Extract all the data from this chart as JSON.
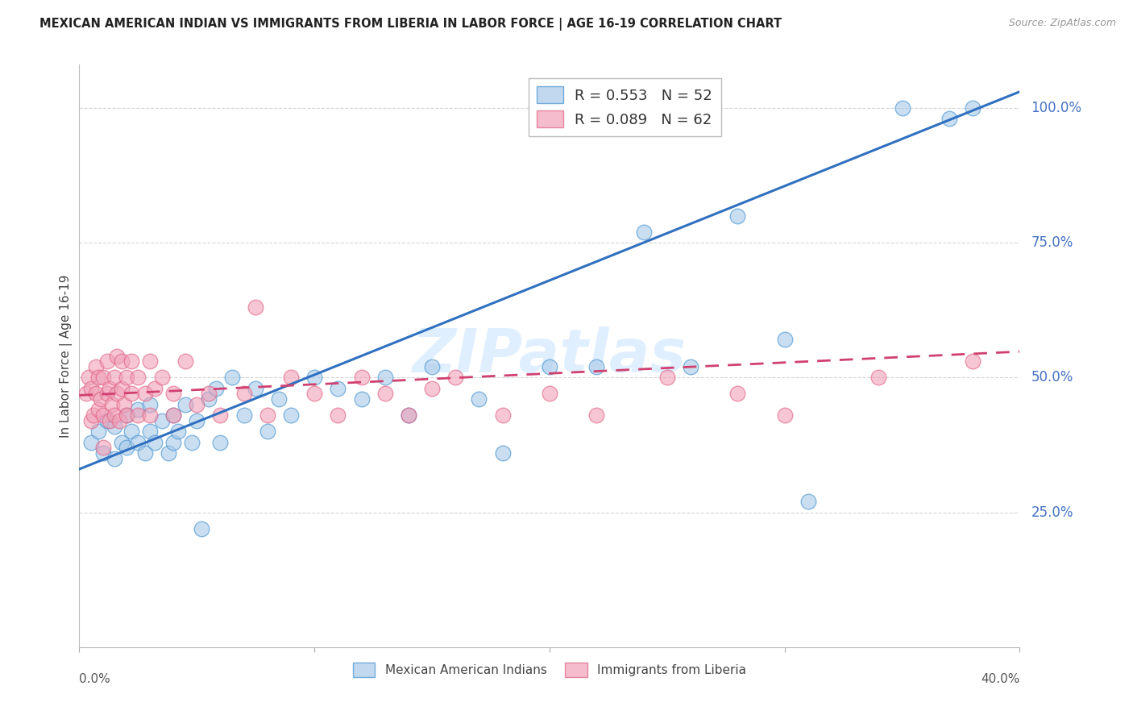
{
  "title": "MEXICAN AMERICAN INDIAN VS IMMIGRANTS FROM LIBERIA IN LABOR FORCE | AGE 16-19 CORRELATION CHART",
  "source": "Source: ZipAtlas.com",
  "ylabel": "In Labor Force | Age 16-19",
  "x_min": 0.0,
  "x_max": 0.4,
  "y_min": 0.0,
  "y_max": 1.08,
  "legend_r1": "R = 0.553",
  "legend_n1": "N = 52",
  "legend_r2": "R = 0.089",
  "legend_n2": "N = 62",
  "blue_fill": "#a8c8e8",
  "blue_edge": "#4090d0",
  "pink_fill": "#f0a0b8",
  "pink_edge": "#e06080",
  "blue_line_color": "#3070c0",
  "pink_line_color": "#d04070",
  "grid_color": "#cccccc",
  "title_color": "#222222",
  "yaxis_label_color": "#4472C4",
  "xaxis_label_color": "#555555",
  "watermark_color": "#ddeeff",
  "blue_scatter_x": [
    0.005,
    0.008,
    0.01,
    0.012,
    0.015,
    0.015,
    0.018,
    0.02,
    0.02,
    0.022,
    0.025,
    0.025,
    0.028,
    0.03,
    0.03,
    0.032,
    0.035,
    0.038,
    0.04,
    0.04,
    0.042,
    0.045,
    0.048,
    0.05,
    0.052,
    0.055,
    0.058,
    0.06,
    0.065,
    0.07,
    0.075,
    0.08,
    0.085,
    0.09,
    0.1,
    0.11,
    0.12,
    0.13,
    0.14,
    0.15,
    0.17,
    0.18,
    0.2,
    0.22,
    0.24,
    0.26,
    0.28,
    0.3,
    0.31,
    0.35,
    0.37,
    0.38
  ],
  "blue_scatter_y": [
    0.38,
    0.4,
    0.36,
    0.42,
    0.35,
    0.41,
    0.38,
    0.37,
    0.43,
    0.4,
    0.38,
    0.44,
    0.36,
    0.4,
    0.45,
    0.38,
    0.42,
    0.36,
    0.38,
    0.43,
    0.4,
    0.45,
    0.38,
    0.42,
    0.22,
    0.46,
    0.48,
    0.38,
    0.5,
    0.43,
    0.48,
    0.4,
    0.46,
    0.43,
    0.5,
    0.48,
    0.46,
    0.5,
    0.43,
    0.52,
    0.46,
    0.36,
    0.52,
    0.52,
    0.77,
    0.52,
    0.8,
    0.57,
    0.27,
    1.0,
    0.98,
    1.0
  ],
  "pink_scatter_x": [
    0.003,
    0.004,
    0.005,
    0.005,
    0.006,
    0.007,
    0.007,
    0.008,
    0.008,
    0.009,
    0.01,
    0.01,
    0.01,
    0.012,
    0.012,
    0.013,
    0.013,
    0.014,
    0.015,
    0.015,
    0.016,
    0.016,
    0.017,
    0.018,
    0.018,
    0.019,
    0.02,
    0.02,
    0.022,
    0.022,
    0.025,
    0.025,
    0.028,
    0.03,
    0.03,
    0.032,
    0.035,
    0.04,
    0.04,
    0.045,
    0.05,
    0.055,
    0.06,
    0.07,
    0.075,
    0.08,
    0.09,
    0.1,
    0.11,
    0.12,
    0.13,
    0.14,
    0.15,
    0.16,
    0.18,
    0.2,
    0.22,
    0.25,
    0.28,
    0.3,
    0.34,
    0.38
  ],
  "pink_scatter_y": [
    0.47,
    0.5,
    0.42,
    0.48,
    0.43,
    0.47,
    0.52,
    0.44,
    0.5,
    0.46,
    0.37,
    0.43,
    0.5,
    0.47,
    0.53,
    0.42,
    0.48,
    0.45,
    0.43,
    0.5,
    0.47,
    0.54,
    0.42,
    0.48,
    0.53,
    0.45,
    0.43,
    0.5,
    0.47,
    0.53,
    0.43,
    0.5,
    0.47,
    0.43,
    0.53,
    0.48,
    0.5,
    0.43,
    0.47,
    0.53,
    0.45,
    0.47,
    0.43,
    0.47,
    0.63,
    0.43,
    0.5,
    0.47,
    0.43,
    0.5,
    0.47,
    0.43,
    0.48,
    0.5,
    0.43,
    0.47,
    0.43,
    0.5,
    0.47,
    0.43,
    0.5,
    0.53
  ],
  "blue_line_x": [
    0.0,
    0.4
  ],
  "blue_line_y": [
    0.33,
    1.03
  ],
  "pink_line_x": [
    0.0,
    0.4
  ],
  "pink_line_y": [
    0.467,
    0.548
  ],
  "yticks": [
    0.25,
    0.5,
    0.75,
    1.0
  ],
  "ytick_labels": [
    "25.0%",
    "50.0%",
    "75.0%",
    "100.0%"
  ],
  "xtick_left_label": "0.0%",
  "xtick_right_label": "40.0%"
}
